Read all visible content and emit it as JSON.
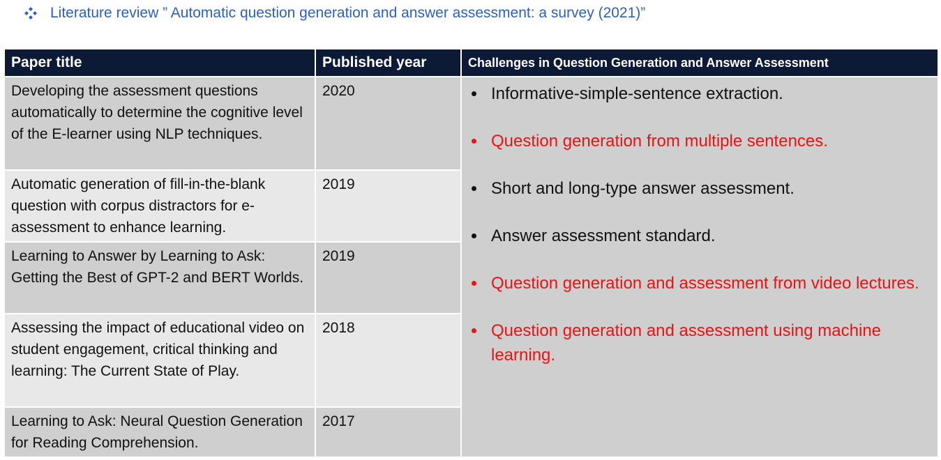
{
  "header": {
    "title": "Literature review ” Automatic question generation and answer assessment: a survey (2021)”",
    "bullet_icon": "four-diamond-bullet-icon",
    "title_color": "#2b5fc4"
  },
  "table": {
    "headers": {
      "paper_title": "Paper title",
      "published_year": "Published year",
      "challenges": "Challenges in Question Generation and Answer Assessment"
    },
    "header_bg": "#0d1a36",
    "rows": [
      {
        "title": "Developing the assessment questions automatically to determine the cognitive level of the E-learner using NLP techniques.",
        "year": "2020"
      },
      {
        "title": "Automatic generation of fill-in-the-blank question with corpus distractors for e-assessment to enhance learning.",
        "year": "2019"
      },
      {
        "title": " Learning to Answer by Learning to Ask: Getting the Best of GPT-2 and BERT Worlds.",
        "year": "2019"
      },
      {
        "title": "Assessing the impact of educational video on student engagement, critical thinking and learning: The Current State of Play.",
        "year": "2018"
      },
      {
        "title": "Learning to Ask: Neural Question Generation for Reading Comprehension.",
        "year": "2017"
      }
    ],
    "challenges": [
      {
        "text": "Informative-simple-sentence extraction.",
        "color": "#111111"
      },
      {
        "text": "Question generation from multiple sentences.",
        "color": "#ee1111"
      },
      {
        "text": "Short and long-type answer assessment.",
        "color": "#111111"
      },
      {
        "text": "Answer assessment standard.",
        "color": "#111111"
      },
      {
        "text": "Question generation and assessment from video lectures.",
        "color": "#ee1111"
      },
      {
        "text": "Question generation and assessment using machine learning.",
        "color": "#ee1111"
      }
    ]
  }
}
